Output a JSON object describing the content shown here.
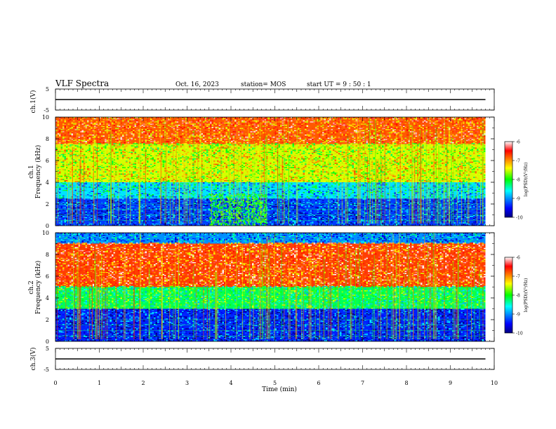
{
  "header": {
    "title": "VLF Spectra",
    "date": "Oct. 16, 2023",
    "station": "station= MOS",
    "start": "start  UT =   9 : 50 : 1"
  },
  "colorbar": {
    "label": "log(PSD)(V²/Hz)",
    "ticks": [
      "-6",
      "-7",
      "-8",
      "-9",
      "-10"
    ]
  },
  "chart_data": [
    {
      "type": "line",
      "ylabel": "ch.1(V)",
      "ylim": [
        -5,
        5
      ],
      "yticks": [
        "5",
        "-5"
      ],
      "series": [
        {
          "x": [
            0,
            9.8
          ],
          "y": [
            0,
            0
          ]
        }
      ]
    },
    {
      "type": "heatmap",
      "ylabel": "ch.1\nFrequency (kHz)",
      "ylim": [
        0,
        10
      ],
      "yticks": [
        "0",
        "2",
        "4",
        "6",
        "8",
        "10"
      ],
      "color_scale": {
        "min": -10,
        "max": -6,
        "colormap": "jet"
      },
      "bands": [
        {
          "freq": [
            7.5,
            10
          ],
          "log_psd": -6.8
        },
        {
          "freq": [
            4,
            7.5
          ],
          "log_psd": -7.5
        },
        {
          "freq": [
            2.5,
            4
          ],
          "log_psd": -8.7
        },
        {
          "freq": [
            0,
            2.5
          ],
          "log_psd": -9.3
        }
      ],
      "events": [
        {
          "time": [
            3.5,
            4.8
          ],
          "freq": [
            0,
            3
          ],
          "log_psd": -8
        }
      ]
    },
    {
      "type": "heatmap",
      "ylabel": "ch.2\nFrequency (kHz)",
      "ylim": [
        0,
        10
      ],
      "yticks": [
        "0",
        "2",
        "4",
        "6",
        "8",
        "10"
      ],
      "color_scale": {
        "min": -10,
        "max": -6,
        "colormap": "jet"
      },
      "bands": [
        {
          "freq": [
            9,
            10
          ],
          "log_psd": -9
        },
        {
          "freq": [
            5,
            9
          ],
          "log_psd": -6.7
        },
        {
          "freq": [
            3,
            5
          ],
          "log_psd": -8.2
        },
        {
          "freq": [
            0,
            3
          ],
          "log_psd": -9.4
        }
      ]
    },
    {
      "type": "line",
      "ylabel": "ch.3(V)",
      "ylim": [
        -5,
        5
      ],
      "yticks": [
        "5",
        "-5"
      ],
      "series": [
        {
          "x": [
            0,
            9.8
          ],
          "y": [
            0,
            0
          ]
        }
      ]
    }
  ],
  "x_axis": {
    "label": "Time  (min)",
    "xlim": [
      0,
      10
    ],
    "ticks": [
      "0",
      "1",
      "2",
      "3",
      "4",
      "5",
      "6",
      "7",
      "8",
      "9",
      "10"
    ]
  }
}
